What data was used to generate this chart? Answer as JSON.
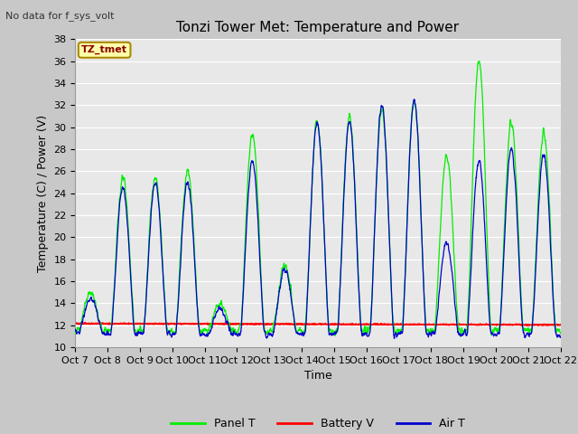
{
  "title": "Tonzi Tower Met: Temperature and Power",
  "ylabel": "Temperature (C) / Power (V)",
  "xlabel": "Time",
  "note": "No data for f_sys_volt",
  "annotation": "TZ_tmet",
  "ylim": [
    10,
    38
  ],
  "yticks": [
    10,
    12,
    14,
    16,
    18,
    20,
    22,
    24,
    26,
    28,
    30,
    32,
    34,
    36,
    38
  ],
  "xtick_labels": [
    "Oct 7",
    "Oct 8",
    "Oct 9",
    "Oct 10",
    "Oct 11",
    "Oct 12",
    "Oct 13",
    "Oct 14",
    "Oct 15",
    "Oct 16",
    "Oct 17",
    "Oct 18",
    "Oct 19",
    "Oct 20",
    "Oct 21",
    "Oct 22"
  ],
  "fig_bg_color": "#c8c8c8",
  "plot_bg_color": "#e8e8e8",
  "grid_color": "#ffffff",
  "panel_t_color": "#00ee00",
  "battery_v_color": "#ff0000",
  "air_t_color": "#0000cc",
  "legend_labels": [
    "Panel T",
    "Battery V",
    "Air T"
  ],
  "title_fontsize": 11,
  "axis_fontsize": 9,
  "tick_fontsize": 8,
  "note_fontsize": 8,
  "annot_fontsize": 8
}
